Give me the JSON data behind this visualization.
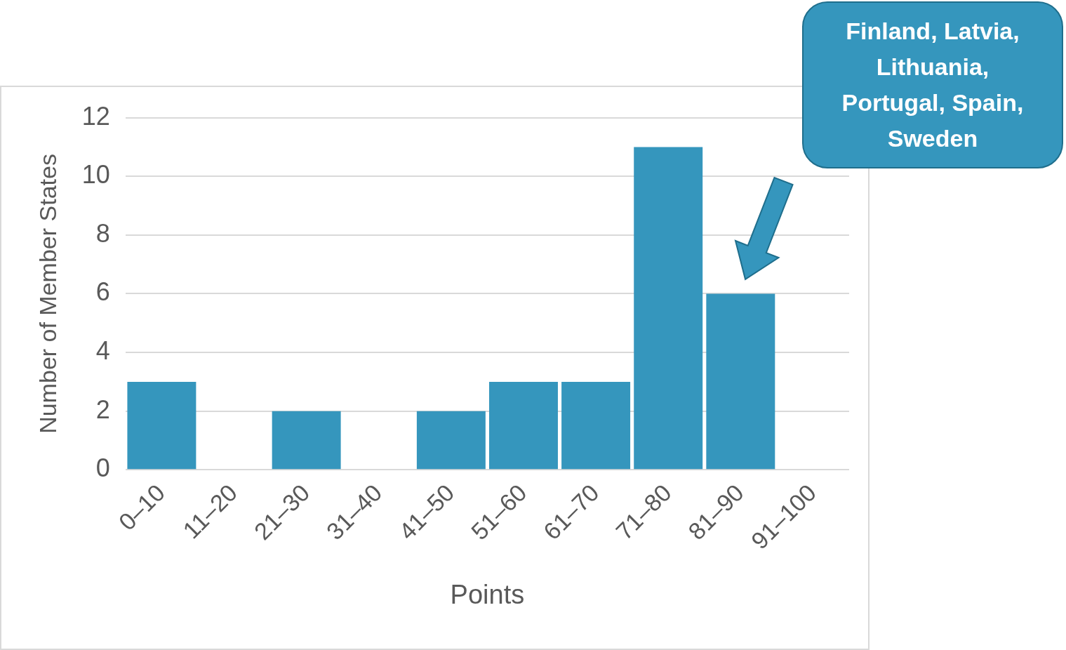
{
  "chart_data": {
    "type": "bar",
    "xlabel": "Points",
    "ylabel": "Number of Member States",
    "categories": [
      "0–10",
      "11–20",
      "21–30",
      "31–40",
      "41–50",
      "51–60",
      "61–70",
      "71–80",
      "81–90",
      "91–100"
    ],
    "values": [
      3,
      0,
      2,
      0,
      2,
      3,
      3,
      11,
      6,
      0
    ],
    "color": "#3596bd",
    "ylim": [
      0,
      12
    ],
    "yticks": [
      0,
      2,
      4,
      6,
      8,
      10,
      12
    ],
    "grid": "y",
    "legend": false,
    "annotations": [
      "Finland, Latvia, Lithuania, Portugal, Spain, Sweden"
    ]
  }
}
